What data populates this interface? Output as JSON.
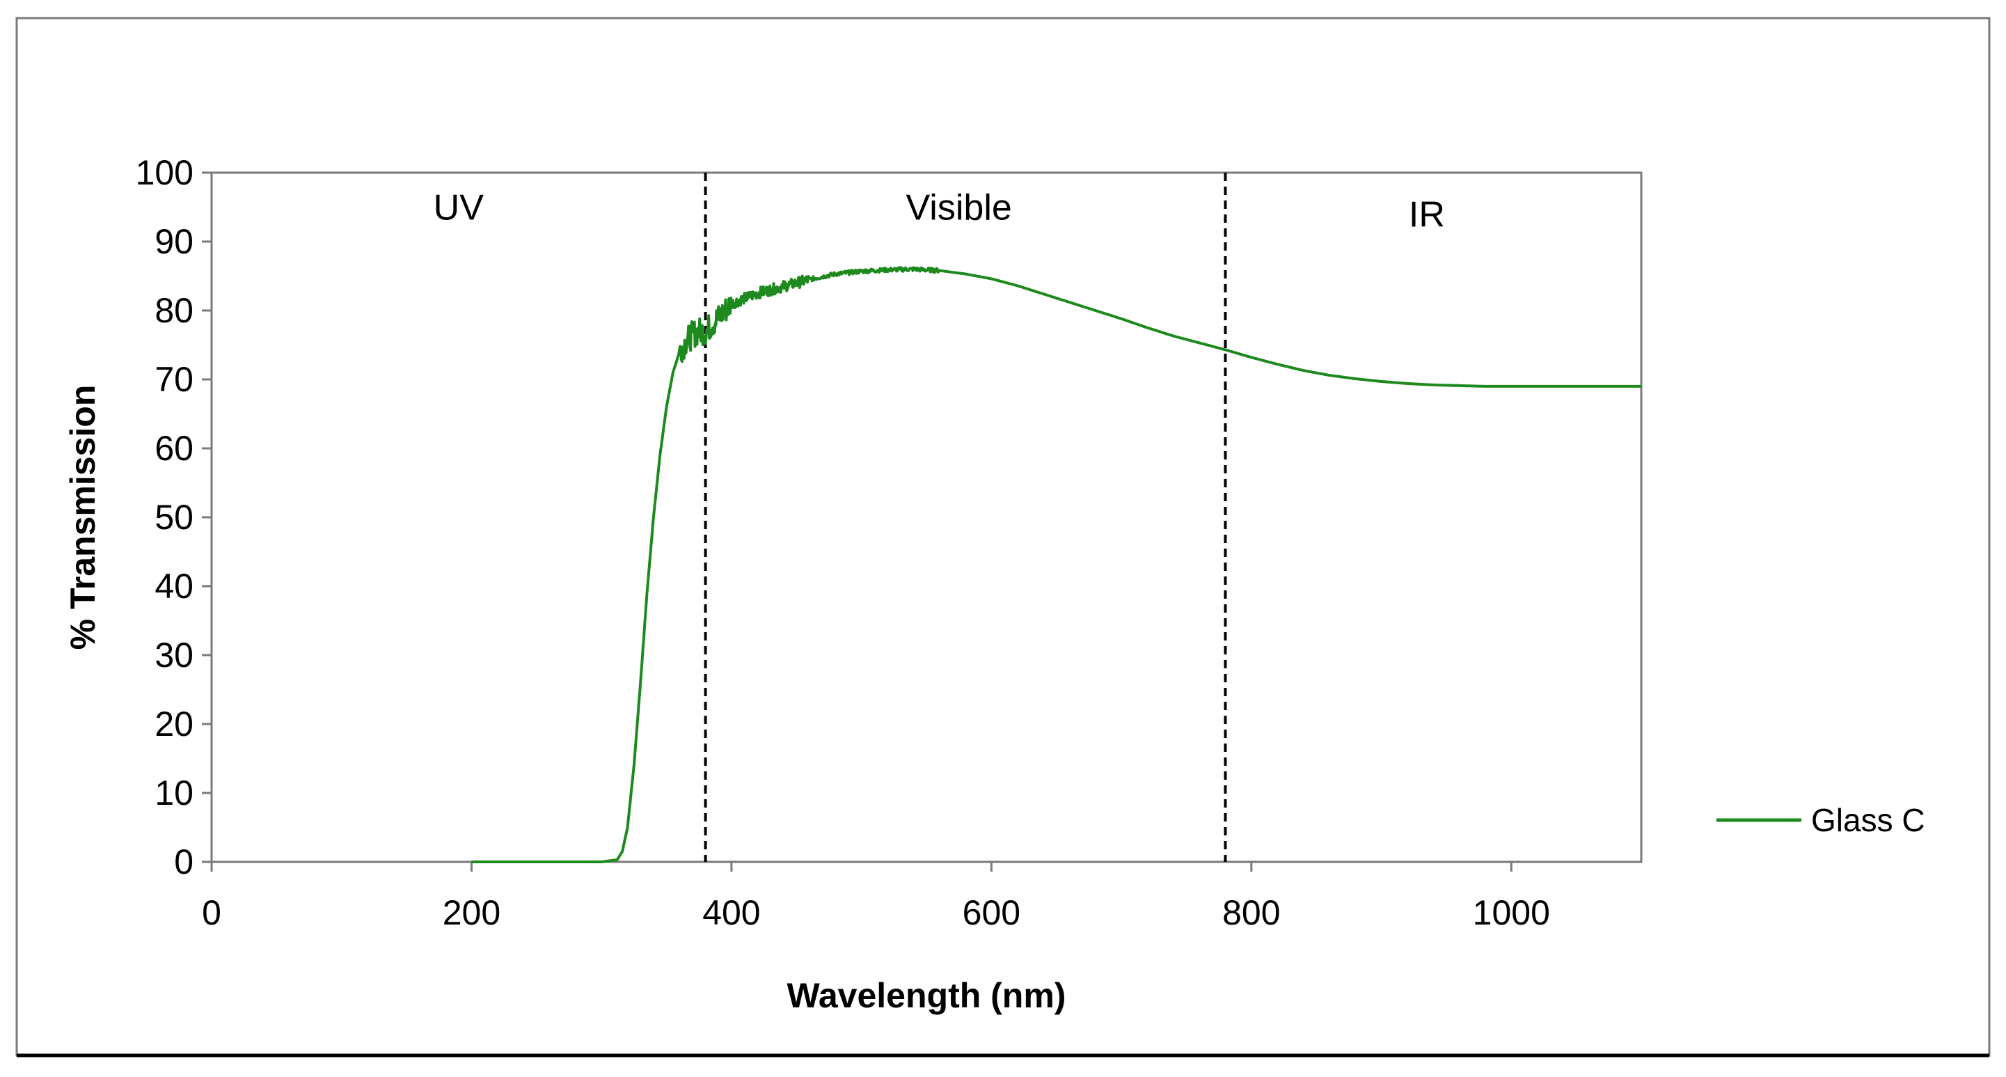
{
  "chart_data": {
    "type": "line",
    "title": "",
    "xlabel": "Wavelength (nm)",
    "ylabel": "% Transmission",
    "xlim": [
      0,
      1100
    ],
    "ylim": [
      0,
      100
    ],
    "xticks": [
      0,
      200,
      400,
      600,
      800,
      1000
    ],
    "yticks": [
      0,
      10,
      20,
      30,
      40,
      50,
      60,
      70,
      80,
      90,
      100
    ],
    "xtick_labels": [
      "0",
      "200",
      "400",
      "600",
      "800",
      "1000"
    ],
    "ytick_labels": [
      "0",
      "10",
      "20",
      "30",
      "40",
      "50",
      "60",
      "70",
      "80",
      "90",
      "100"
    ],
    "grid": false,
    "legend_position": "right",
    "region_dividers": [
      380,
      780
    ],
    "regions": [
      {
        "label": "UV",
        "x": 190,
        "y": 95
      },
      {
        "label": "Visible",
        "x": 575,
        "y": 95
      },
      {
        "label": "IR",
        "x": 935,
        "y": 94
      }
    ],
    "series": [
      {
        "name": "Glass C",
        "color": "#1e8a1e",
        "x": [
          200,
          250,
          300,
          312,
          316,
          320,
          325,
          330,
          335,
          340,
          345,
          350,
          355,
          360,
          365,
          370,
          375,
          380,
          390,
          400,
          420,
          440,
          460,
          480,
          500,
          520,
          540,
          560,
          580,
          600,
          620,
          640,
          660,
          680,
          700,
          720,
          740,
          760,
          780,
          800,
          820,
          840,
          860,
          880,
          900,
          920,
          940,
          960,
          980,
          1000,
          1020,
          1040,
          1060,
          1080,
          1100
        ],
        "y": [
          0,
          0,
          0,
          0.3,
          1.5,
          5,
          14,
          26,
          39,
          50,
          59,
          66,
          71,
          74,
          75.5,
          76.5,
          77,
          77,
          79,
          81,
          82.5,
          83.5,
          84.5,
          85.3,
          85.7,
          85.9,
          86.0,
          85.8,
          85.3,
          84.6,
          83.6,
          82.4,
          81.2,
          80,
          78.8,
          77.5,
          76.3,
          75.3,
          74.3,
          73.2,
          72.2,
          71.3,
          70.6,
          70.1,
          69.7,
          69.4,
          69.2,
          69.1,
          69.0,
          69.0,
          69.0,
          69.0,
          69.0,
          69.0,
          69.0
        ],
        "noise": [
          {
            "from": 360,
            "to": 400,
            "amplitude": 2.0
          },
          {
            "from": 400,
            "to": 460,
            "amplitude": 0.8
          },
          {
            "from": 460,
            "to": 560,
            "amplitude": 0.3
          }
        ]
      }
    ]
  }
}
